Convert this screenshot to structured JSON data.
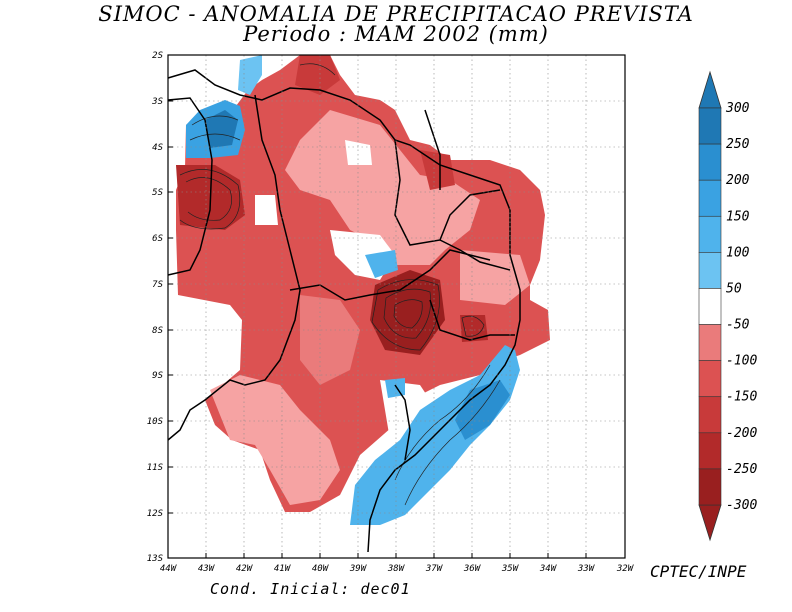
{
  "title": {
    "line1": "SIMOC -  ANOMALIA DE PRECIPITACAO PREVISTA",
    "line2": "Periodo : MAM 2002 (mm)"
  },
  "axes": {
    "x_ticks": [
      "44W",
      "43W",
      "42W",
      "41W",
      "40W",
      "39W",
      "38W",
      "37W",
      "36W",
      "35W",
      "34W",
      "33W",
      "32W"
    ],
    "y_ticks": [
      "2S",
      "3S",
      "4S",
      "5S",
      "6S",
      "7S",
      "8S",
      "9S",
      "10S",
      "11S",
      "12S",
      "13S"
    ],
    "lon_range": [
      -44,
      -32
    ],
    "lat_range": [
      -13,
      -2
    ]
  },
  "colorbar": {
    "labels": [
      "300",
      "250",
      "200",
      "150",
      "100",
      "50",
      "-50",
      "-100",
      "-150",
      "-200",
      "-250",
      "-300"
    ],
    "colors": [
      "#1f78b4",
      "#2a8fd0",
      "#3aa2e2",
      "#4fb3ec",
      "#6cc3f2",
      "#ffffff",
      "#f6a3a3",
      "#ea7b7b",
      "#dc5252",
      "#c83a3a",
      "#b22a2a",
      "#991f1f"
    ]
  },
  "credit": "CPTEC/INPE",
  "footer": "Cond. Inicial: dec01"
}
